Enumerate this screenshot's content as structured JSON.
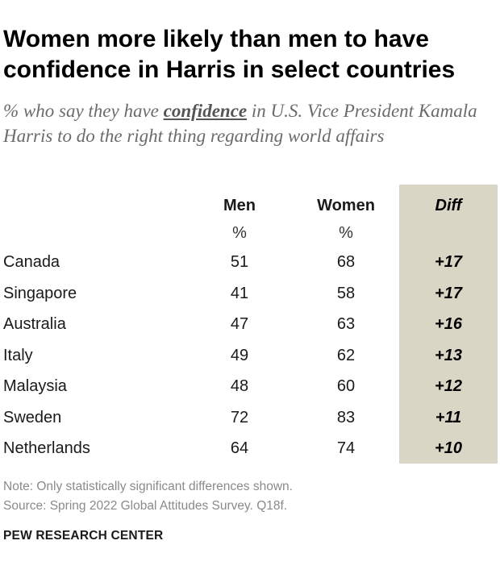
{
  "title": "Women more likely than men to have confidence in Harris in select countries",
  "subtitle": {
    "before": "% who say they have ",
    "keyword": "confidence",
    "after": " in U.S. Vice President Kamala Harris to do the right thing regarding world affairs"
  },
  "chart_data": {
    "type": "table",
    "columns": [
      "Men",
      "Women",
      "Diff"
    ],
    "units": [
      "%",
      "%",
      ""
    ],
    "rows": [
      {
        "country": "Canada",
        "men": 51,
        "women": 68,
        "diff": "+17"
      },
      {
        "country": "Singapore",
        "men": 41,
        "women": 58,
        "diff": "+17"
      },
      {
        "country": "Australia",
        "men": 47,
        "women": 63,
        "diff": "+16"
      },
      {
        "country": "Italy",
        "men": 49,
        "women": 62,
        "diff": "+13"
      },
      {
        "country": "Malaysia",
        "men": 48,
        "women": 60,
        "diff": "+12"
      },
      {
        "country": "Sweden",
        "men": 72,
        "women": 83,
        "diff": "+11"
      },
      {
        "country": "Netherlands",
        "men": 64,
        "women": 74,
        "diff": "+10"
      }
    ]
  },
  "note": "Note: Only statistically significant differences shown.",
  "source": "Source: Spring 2022 Global Attitudes Survey. Q18f.",
  "brand": "PEW RESEARCH CENTER",
  "colors": {
    "diff_background": "#dad6c5",
    "subtitle": "#6b6b6b",
    "note": "#8a8a8a"
  }
}
